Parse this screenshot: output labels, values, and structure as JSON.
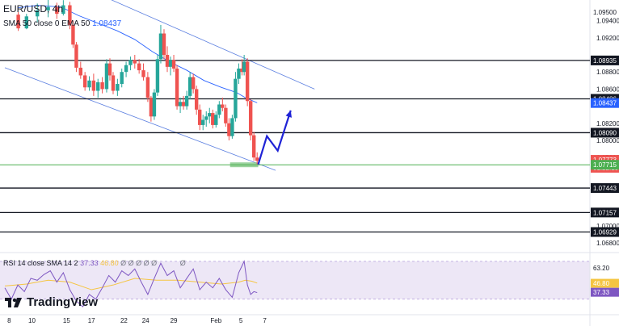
{
  "header": {
    "symbol": "EUR/USD, 4h",
    "indicator_label": "SMA 50 close 0 EMA 50",
    "indicator_value": "1.08437"
  },
  "rsi_header": {
    "label": "RSI 14 close SMA 14 2",
    "rsi_value": "37.33",
    "sma_value": "46.80",
    "placeholders": "Ø Ø Ø Ø Ø",
    "last_placeholder": "Ø"
  },
  "branding": {
    "text": "TradingView"
  },
  "colors": {
    "bull": "#26a69a",
    "bear": "#ef5350",
    "ma": "#2962ff",
    "level": "#131722",
    "support": "#4caf50",
    "arrow": "#1f23d6",
    "rsi": "#7e57c2",
    "rsi_sma": "#f5c542"
  },
  "chart_data": {
    "type": "candlestick",
    "symbol": "EUR/USD",
    "timeframe": "4h",
    "y_ticks": [
      "1.09400",
      "1.09200",
      "1.08800",
      "1.08600",
      "1.08200",
      "1.08000",
      "1.07800",
      "1.07000",
      "1.06800"
    ],
    "x_ticks": [
      "8",
      "10",
      "15",
      "17",
      "22",
      "24",
      "29",
      "Feb",
      "5",
      "7"
    ],
    "levels": [
      {
        "price": 1.08935,
        "label": "1.08935"
      },
      {
        "price": 1.08486,
        "label": "1.08486"
      },
      {
        "price": 1.0809,
        "label": "1.08090"
      },
      {
        "price": 1.07443,
        "label": "1.07443"
      },
      {
        "price": 1.07157,
        "label": "1.07157"
      },
      {
        "price": 1.06929,
        "label": "1.06929"
      }
    ],
    "price_tags": [
      {
        "label": "1.09500",
        "price": 1.095,
        "color": "#131722"
      },
      {
        "label": "1.08437",
        "price": 1.08437,
        "color": "#2962ff"
      },
      {
        "label": "1.07773",
        "price": 1.07773,
        "color": "#ef5350"
      },
      {
        "label": "01:22:19",
        "price": 1.0768,
        "color": "#ef5350"
      },
      {
        "label": "1.07715",
        "price": 1.07715,
        "color": "#4caf50"
      }
    ],
    "candles": [
      {
        "x": 0.62,
        "o": 1.0947,
        "h": 1.095,
        "l": 1.0928,
        "c": 1.0931
      },
      {
        "x": 1.0,
        "o": 1.0931,
        "h": 1.0948,
        "l": 1.093,
        "c": 1.0945
      },
      {
        "x": 1.5,
        "o": 1.0945,
        "h": 1.096,
        "l": 1.0938,
        "c": 1.0952
      },
      {
        "x": 2.0,
        "o": 1.0952,
        "h": 1.0965,
        "l": 1.0944,
        "c": 1.0956
      },
      {
        "x": 2.4,
        "o": 1.0956,
        "h": 1.0961,
        "l": 1.0942,
        "c": 1.0948
      },
      {
        "x": 2.7,
        "o": 1.0948,
        "h": 1.0964,
        "l": 1.0946,
        "c": 1.0958
      },
      {
        "x": 3.0,
        "o": 1.0958,
        "h": 1.0962,
        "l": 1.093,
        "c": 1.0935
      },
      {
        "x": 3.15,
        "o": 1.0935,
        "h": 1.094,
        "l": 1.0908,
        "c": 1.0912
      },
      {
        "x": 3.3,
        "o": 1.0912,
        "h": 1.0915,
        "l": 1.088,
        "c": 1.0885
      },
      {
        "x": 3.5,
        "o": 1.0885,
        "h": 1.0892,
        "l": 1.0872,
        "c": 1.0876
      },
      {
        "x": 3.7,
        "o": 1.0876,
        "h": 1.088,
        "l": 1.0858,
        "c": 1.0862
      },
      {
        "x": 3.9,
        "o": 1.0862,
        "h": 1.0875,
        "l": 1.0858,
        "c": 1.087
      },
      {
        "x": 4.1,
        "o": 1.087,
        "h": 1.0878,
        "l": 1.0852,
        "c": 1.0858
      },
      {
        "x": 4.3,
        "o": 1.0858,
        "h": 1.0872,
        "l": 1.085,
        "c": 1.0868
      },
      {
        "x": 4.5,
        "o": 1.0868,
        "h": 1.0874,
        "l": 1.0855,
        "c": 1.086
      },
      {
        "x": 4.7,
        "o": 1.086,
        "h": 1.0895,
        "l": 1.0856,
        "c": 1.089
      },
      {
        "x": 4.85,
        "o": 1.089,
        "h": 1.0896,
        "l": 1.087,
        "c": 1.0876
      },
      {
        "x": 5.0,
        "o": 1.0876,
        "h": 1.088,
        "l": 1.0854,
        "c": 1.0858
      },
      {
        "x": 5.2,
        "o": 1.0858,
        "h": 1.0872,
        "l": 1.0852,
        "c": 1.0866
      },
      {
        "x": 5.4,
        "o": 1.0866,
        "h": 1.0884,
        "l": 1.0862,
        "c": 1.088
      },
      {
        "x": 5.6,
        "o": 1.088,
        "h": 1.0892,
        "l": 1.0874,
        "c": 1.0888
      },
      {
        "x": 5.8,
        "o": 1.0888,
        "h": 1.0898,
        "l": 1.0882,
        "c": 1.0894
      },
      {
        "x": 6.0,
        "o": 1.0894,
        "h": 1.09,
        "l": 1.0884,
        "c": 1.089
      },
      {
        "x": 6.2,
        "o": 1.089,
        "h": 1.0895,
        "l": 1.0878,
        "c": 1.0882
      },
      {
        "x": 6.4,
        "o": 1.0882,
        "h": 1.089,
        "l": 1.087,
        "c": 1.0874
      },
      {
        "x": 6.6,
        "o": 1.0874,
        "h": 1.088,
        "l": 1.0845,
        "c": 1.085
      },
      {
        "x": 6.75,
        "o": 1.085,
        "h": 1.0852,
        "l": 1.0822,
        "c": 1.0828
      },
      {
        "x": 6.9,
        "o": 1.0828,
        "h": 1.086,
        "l": 1.0824,
        "c": 1.0856
      },
      {
        "x": 7.05,
        "o": 1.0856,
        "h": 1.09,
        "l": 1.0852,
        "c": 1.0895
      },
      {
        "x": 7.2,
        "o": 1.0895,
        "h": 1.0935,
        "l": 1.089,
        "c": 1.0925
      },
      {
        "x": 7.35,
        "o": 1.0925,
        "h": 1.093,
        "l": 1.0895,
        "c": 1.09
      },
      {
        "x": 7.5,
        "o": 1.09,
        "h": 1.091,
        "l": 1.088,
        "c": 1.0886
      },
      {
        "x": 7.65,
        "o": 1.0886,
        "h": 1.0898,
        "l": 1.0876,
        "c": 1.0894
      },
      {
        "x": 7.8,
        "o": 1.0894,
        "h": 1.09,
        "l": 1.088,
        "c": 1.0884
      },
      {
        "x": 7.95,
        "o": 1.0884,
        "h": 1.0888,
        "l": 1.0836,
        "c": 1.084
      },
      {
        "x": 8.1,
        "o": 1.084,
        "h": 1.085,
        "l": 1.0832,
        "c": 1.0845
      },
      {
        "x": 8.25,
        "o": 1.0845,
        "h": 1.0852,
        "l": 1.0836,
        "c": 1.084
      },
      {
        "x": 8.4,
        "o": 1.084,
        "h": 1.0858,
        "l": 1.0836,
        "c": 1.0852
      },
      {
        "x": 8.55,
        "o": 1.0852,
        "h": 1.088,
        "l": 1.0848,
        "c": 1.0874
      },
      {
        "x": 8.7,
        "o": 1.0874,
        "h": 1.0878,
        "l": 1.0855,
        "c": 1.086
      },
      {
        "x": 8.85,
        "o": 1.086,
        "h": 1.0864,
        "l": 1.083,
        "c": 1.0836
      },
      {
        "x": 9.0,
        "o": 1.0836,
        "h": 1.0842,
        "l": 1.0812,
        "c": 1.0818
      },
      {
        "x": 9.15,
        "o": 1.0818,
        "h": 1.083,
        "l": 1.0812,
        "c": 1.0824
      },
      {
        "x": 9.3,
        "o": 1.0824,
        "h": 1.0834,
        "l": 1.0816,
        "c": 1.0828
      },
      {
        "x": 9.45,
        "o": 1.0828,
        "h": 1.0838,
        "l": 1.082,
        "c": 1.0832
      },
      {
        "x": 9.6,
        "o": 1.0832,
        "h": 1.0836,
        "l": 1.0814,
        "c": 1.0818
      },
      {
        "x": 9.75,
        "o": 1.0818,
        "h": 1.0834,
        "l": 1.0815,
        "c": 1.083
      },
      {
        "x": 9.9,
        "o": 1.083,
        "h": 1.0846,
        "l": 1.0826,
        "c": 1.0842
      },
      {
        "x": 10.05,
        "o": 1.0842,
        "h": 1.085,
        "l": 1.0834,
        "c": 1.0838
      },
      {
        "x": 10.2,
        "o": 1.0838,
        "h": 1.0842,
        "l": 1.0816,
        "c": 1.082
      },
      {
        "x": 10.35,
        "o": 1.082,
        "h": 1.0826,
        "l": 1.08,
        "c": 1.0805
      },
      {
        "x": 10.5,
        "o": 1.0805,
        "h": 1.083,
        "l": 1.0802,
        "c": 1.0826
      },
      {
        "x": 10.65,
        "o": 1.0826,
        "h": 1.088,
        "l": 1.0822,
        "c": 1.0872
      },
      {
        "x": 10.8,
        "o": 1.0872,
        "h": 1.089,
        "l": 1.0866,
        "c": 1.0884
      },
      {
        "x": 10.95,
        "o": 1.0884,
        "h": 1.0895,
        "l": 1.0876,
        "c": 1.088
      },
      {
        "x": 11.05,
        "o": 1.088,
        "h": 1.09,
        "l": 1.0876,
        "c": 1.0892
      },
      {
        "x": 11.2,
        "o": 1.0892,
        "h": 1.0896,
        "l": 1.084,
        "c": 1.0846
      },
      {
        "x": 11.35,
        "o": 1.0846,
        "h": 1.0848,
        "l": 1.08,
        "c": 1.0806
      },
      {
        "x": 11.5,
        "o": 1.0806,
        "h": 1.081,
        "l": 1.0776,
        "c": 1.078
      },
      {
        "x": 11.65,
        "o": 1.078,
        "h": 1.0786,
        "l": 1.0772,
        "c": 1.0776
      }
    ],
    "sma": [
      [
        0.62,
        1.0955
      ],
      [
        1.5,
        1.0958
      ],
      [
        2.6,
        1.0956
      ],
      [
        3.4,
        1.0946
      ],
      [
        4.3,
        1.0937
      ],
      [
        5.2,
        1.0928
      ],
      [
        6.0,
        1.0918
      ],
      [
        6.8,
        1.0904
      ],
      [
        7.6,
        1.0892
      ],
      [
        8.4,
        1.0882
      ],
      [
        9.2,
        1.087
      ],
      [
        10.0,
        1.0862
      ],
      [
        10.7,
        1.0856
      ],
      [
        11.1,
        1.085
      ],
      [
        11.65,
        1.0844
      ]
    ],
    "channel_upper": [
      [
        4.5,
        1.0969
      ],
      [
        14.3,
        1.086
      ]
    ],
    "channel_lower": [
      [
        0.0,
        1.0885
      ],
      [
        12.5,
        1.0765
      ]
    ],
    "support_zone": {
      "x_start": 10.4,
      "x_end": 11.7,
      "price": 1.07715
    },
    "projection_arrow": [
      [
        11.7,
        1.0772
      ],
      [
        12.1,
        1.0805
      ],
      [
        12.6,
        1.0788
      ],
      [
        13.2,
        1.0835
      ]
    ],
    "rsi": [
      [
        0.0,
        42
      ],
      [
        0.3,
        30
      ],
      [
        0.6,
        45
      ],
      [
        0.9,
        38
      ],
      [
        1.2,
        52
      ],
      [
        1.5,
        50
      ],
      [
        1.8,
        56
      ],
      [
        2.1,
        60
      ],
      [
        2.4,
        48
      ],
      [
        2.7,
        58
      ],
      [
        3.0,
        40
      ],
      [
        3.3,
        28
      ],
      [
        3.6,
        22
      ],
      [
        3.9,
        35
      ],
      [
        4.2,
        30
      ],
      [
        4.5,
        42
      ],
      [
        4.8,
        55
      ],
      [
        5.1,
        48
      ],
      [
        5.4,
        60
      ],
      [
        5.7,
        55
      ],
      [
        6.0,
        62
      ],
      [
        6.3,
        48
      ],
      [
        6.6,
        35
      ],
      [
        6.9,
        52
      ],
      [
        7.2,
        68
      ],
      [
        7.5,
        55
      ],
      [
        7.8,
        60
      ],
      [
        8.1,
        42
      ],
      [
        8.4,
        52
      ],
      [
        8.7,
        62
      ],
      [
        9.0,
        40
      ],
      [
        9.3,
        48
      ],
      [
        9.6,
        42
      ],
      [
        9.9,
        52
      ],
      [
        10.2,
        40
      ],
      [
        10.5,
        32
      ],
      [
        10.8,
        58
      ],
      [
        11.05,
        70
      ],
      [
        11.2,
        45
      ],
      [
        11.35,
        35
      ],
      [
        11.5,
        38
      ],
      [
        11.65,
        37
      ]
    ],
    "rsi_sma": [
      [
        0.0,
        44
      ],
      [
        1.0,
        46
      ],
      [
        2.0,
        50
      ],
      [
        3.0,
        48
      ],
      [
        4.0,
        40
      ],
      [
        5.0,
        45
      ],
      [
        6.0,
        52
      ],
      [
        7.0,
        50
      ],
      [
        8.0,
        50
      ],
      [
        9.0,
        48
      ],
      [
        10.0,
        46
      ],
      [
        10.8,
        48
      ],
      [
        11.1,
        50
      ],
      [
        11.4,
        49
      ],
      [
        11.65,
        47
      ]
    ],
    "rsi_ticks": [
      {
        "label": "63.20",
        "value": 63.2,
        "color": "#131722"
      },
      {
        "label": "46.80",
        "value": 46.8,
        "color": "#f5c542"
      },
      {
        "label": "37.89",
        "value": 37.89,
        "color": "#131722"
      },
      {
        "label": "37.33",
        "value": 37.33,
        "color": "#7e57c2"
      }
    ],
    "rsi_band": [
      30,
      70
    ]
  }
}
